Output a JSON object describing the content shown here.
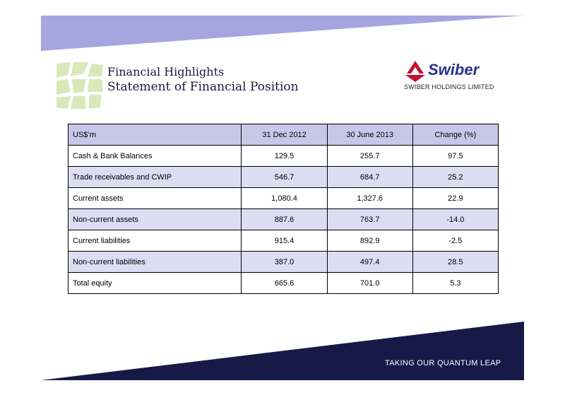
{
  "title_line1": "Financial Highlights",
  "title_line2": "Statement of Financial Position",
  "logo_text": "Swiber",
  "company_name": "SWIBER HOLDINGS LIMITED",
  "table": {
    "headers": [
      "US$’m",
      "31 Dec 2012",
      "30 June 2013",
      "Change (%)"
    ],
    "rows": [
      [
        "Cash & Bank Balances",
        "129.5",
        "255.7",
        "97.5"
      ],
      [
        "Trade receivables and CWIP",
        "546.7",
        "684.7",
        "25.2"
      ],
      [
        "Current assets",
        "1,080.4",
        "1,327.6",
        "22.9"
      ],
      [
        "Non-current assets",
        "887.6",
        "763.7",
        "-14.0"
      ],
      [
        "Current liabilities",
        "915.4",
        "892.9",
        "-2.5"
      ],
      [
        "Non-current liabilities",
        "387.0",
        "497.4",
        "28.5"
      ],
      [
        "Total equity",
        "665.6",
        "701.0",
        "5.3"
      ]
    ]
  },
  "tagline": "TAKING OUR QUANTUM LEAP",
  "colors": {
    "top_band": "#a5a6e0",
    "bottom_band": "#171a47",
    "header_fill": "#c7c7e8",
    "row_shade": "#dcdcf2",
    "leaf_green": "#d9e8b8",
    "logo_red": "#c8102e",
    "logo_blue": "#2b2f8e"
  }
}
